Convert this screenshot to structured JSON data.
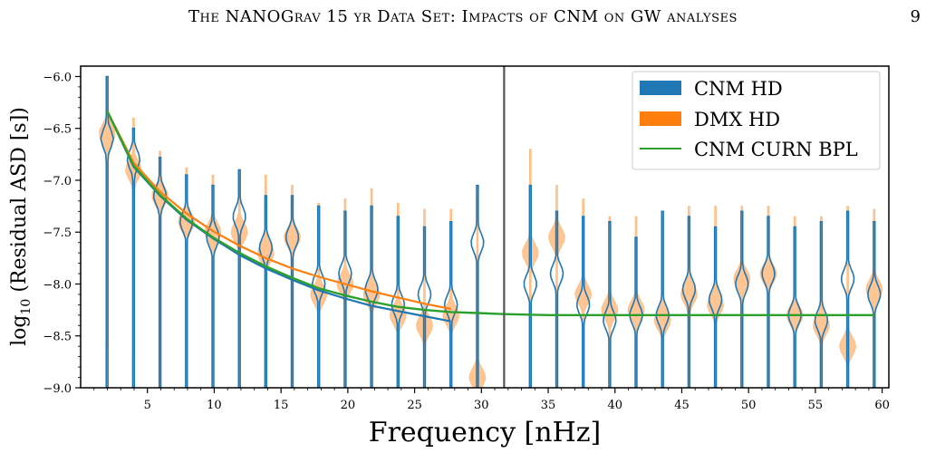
{
  "header": {
    "running_title": "The NANOGrav 15 yr Data Set: Impacts of CNM on GW analyses",
    "page_number": "9"
  },
  "colors": {
    "cnm_hd": "#1f77b4",
    "dmx_hd": "#ff7f0e",
    "dmx_fill": "#ffbb80",
    "curn_bpl": "#2ca02c"
  },
  "chart_data": {
    "type": "violin",
    "xlabel": "Frequency [nHz]",
    "ylabel": "log10 (Residual ASD [s])",
    "xlim": [
      0,
      60.5
    ],
    "ylim": [
      -9.0,
      -5.9
    ],
    "xticks": [
      5,
      10,
      15,
      20,
      25,
      30,
      35,
      40,
      45,
      50,
      55,
      60
    ],
    "yticks": [
      -6.0,
      -6.5,
      -7.0,
      -7.5,
      -8.0,
      -8.5,
      -9.0
    ],
    "ytick_labels": [
      "−6.0",
      "−6.5",
      "−7.0",
      "−7.5",
      "−8.0",
      "−8.5",
      "−9.0"
    ],
    "vertical_line_x": 31.7,
    "legend_placement": "top-right",
    "legend": [
      {
        "label": "CNM HD",
        "style": "patch",
        "color": "#1f77b4"
      },
      {
        "label": "DMX HD",
        "style": "patch",
        "color": "#ff7f0e"
      },
      {
        "label": "CNM CURN BPL",
        "style": "line",
        "color": "#2ca02c"
      }
    ],
    "violins": {
      "frequencies": [
        1.98,
        3.96,
        5.94,
        7.92,
        9.9,
        11.88,
        13.86,
        15.84,
        17.82,
        19.8,
        21.78,
        23.76,
        25.74,
        27.72,
        29.7,
        33.66,
        35.64,
        37.62,
        39.6,
        41.58,
        43.56,
        45.54,
        47.52,
        49.5,
        51.48,
        53.46,
        55.44,
        57.42,
        59.4
      ],
      "cnm_top": [
        -6.0,
        -6.5,
        -6.78,
        -6.95,
        -7.05,
        -6.9,
        -7.15,
        -7.15,
        -7.25,
        -7.3,
        -7.25,
        -7.35,
        -7.45,
        -7.4,
        -7.05,
        -7.05,
        -7.3,
        -7.35,
        -7.4,
        -7.55,
        -7.3,
        -7.35,
        -7.45,
        -7.3,
        -7.35,
        -7.45,
        -7.4,
        -7.3,
        -7.4
      ],
      "cnm_bulge": [
        -6.6,
        -6.8,
        -7.15,
        -7.4,
        -7.55,
        -7.35,
        -7.65,
        -7.55,
        -8.0,
        -7.9,
        -8.05,
        -8.2,
        -8.1,
        -8.2,
        -7.6,
        -8.0,
        -7.9,
        -8.2,
        -8.35,
        -8.3,
        -8.3,
        -8.05,
        -8.15,
        -8.0,
        -7.9,
        -8.3,
        -8.35,
        -7.95,
        -8.1
      ],
      "dmx_top": [
        -6.0,
        -6.4,
        -6.72,
        -6.88,
        -6.95,
        -6.95,
        -6.95,
        -7.05,
        -7.22,
        -7.18,
        -7.08,
        -7.22,
        -7.28,
        -7.28,
        -7.15,
        -6.7,
        -7.05,
        -7.18,
        -7.35,
        -7.35,
        -7.35,
        -7.25,
        -7.25,
        -7.25,
        -7.25,
        -7.35,
        -7.35,
        -7.25,
        -7.28
      ],
      "dmx_bottom": [
        -8.6,
        -8.7,
        -9.0,
        -9.0,
        -9.0,
        -9.0,
        -9.0,
        -9.0,
        -9.0,
        -9.0,
        -9.0,
        -9.0,
        -9.0,
        -9.0,
        -9.0,
        -9.0,
        -9.0,
        -9.0,
        -9.0,
        -9.0,
        -9.0,
        -9.0,
        -9.0,
        -9.0,
        -9.0,
        -9.0,
        -9.0,
        -9.0,
        -9.0
      ],
      "dmx_bulge": [
        -6.55,
        -6.9,
        -7.15,
        -7.4,
        -7.5,
        -7.5,
        -7.7,
        -7.55,
        -8.1,
        -8.0,
        -8.1,
        -8.3,
        -8.4,
        -8.3,
        -8.9,
        -7.7,
        -7.55,
        -8.1,
        -8.25,
        -8.25,
        -8.35,
        -8.1,
        -8.2,
        -7.95,
        -7.9,
        -8.3,
        -8.4,
        -8.6,
        -8.05
      ]
    },
    "series": [
      {
        "name": "CNM HD",
        "x": [
          1.98,
          3.96,
          5.94,
          7.92,
          9.9,
          11.88,
          13.86,
          15.84,
          17.82,
          19.8,
          21.78,
          23.76,
          25.74,
          27.72
        ],
        "y": [
          -6.33,
          -6.87,
          -7.15,
          -7.38,
          -7.56,
          -7.72,
          -7.85,
          -7.96,
          -8.06,
          -8.14,
          -8.21,
          -8.26,
          -8.31,
          -8.36
        ]
      },
      {
        "name": "DMX HD",
        "x": [
          1.98,
          3.96,
          5.94,
          7.92,
          9.9,
          11.88,
          13.86,
          15.84,
          17.82,
          19.8,
          21.78,
          23.76,
          25.74,
          27.72
        ],
        "y": [
          -6.33,
          -6.83,
          -7.11,
          -7.32,
          -7.49,
          -7.63,
          -7.75,
          -7.85,
          -7.93,
          -8.0,
          -8.07,
          -8.13,
          -8.19,
          -8.24
        ]
      },
      {
        "name": "CNM CURN BPL",
        "x": [
          1.98,
          3.96,
          5.94,
          7.92,
          9.9,
          11.88,
          13.86,
          15.84,
          17.82,
          19.8,
          21.78,
          23.76,
          25.74,
          27.72,
          29.7,
          31.7,
          35,
          40,
          45,
          50,
          55,
          59.4
        ],
        "y": [
          -6.33,
          -6.86,
          -7.14,
          -7.37,
          -7.55,
          -7.7,
          -7.83,
          -7.94,
          -8.04,
          -8.11,
          -8.17,
          -8.22,
          -8.25,
          -8.27,
          -8.28,
          -8.29,
          -8.3,
          -8.3,
          -8.3,
          -8.3,
          -8.3,
          -8.3
        ]
      }
    ]
  }
}
